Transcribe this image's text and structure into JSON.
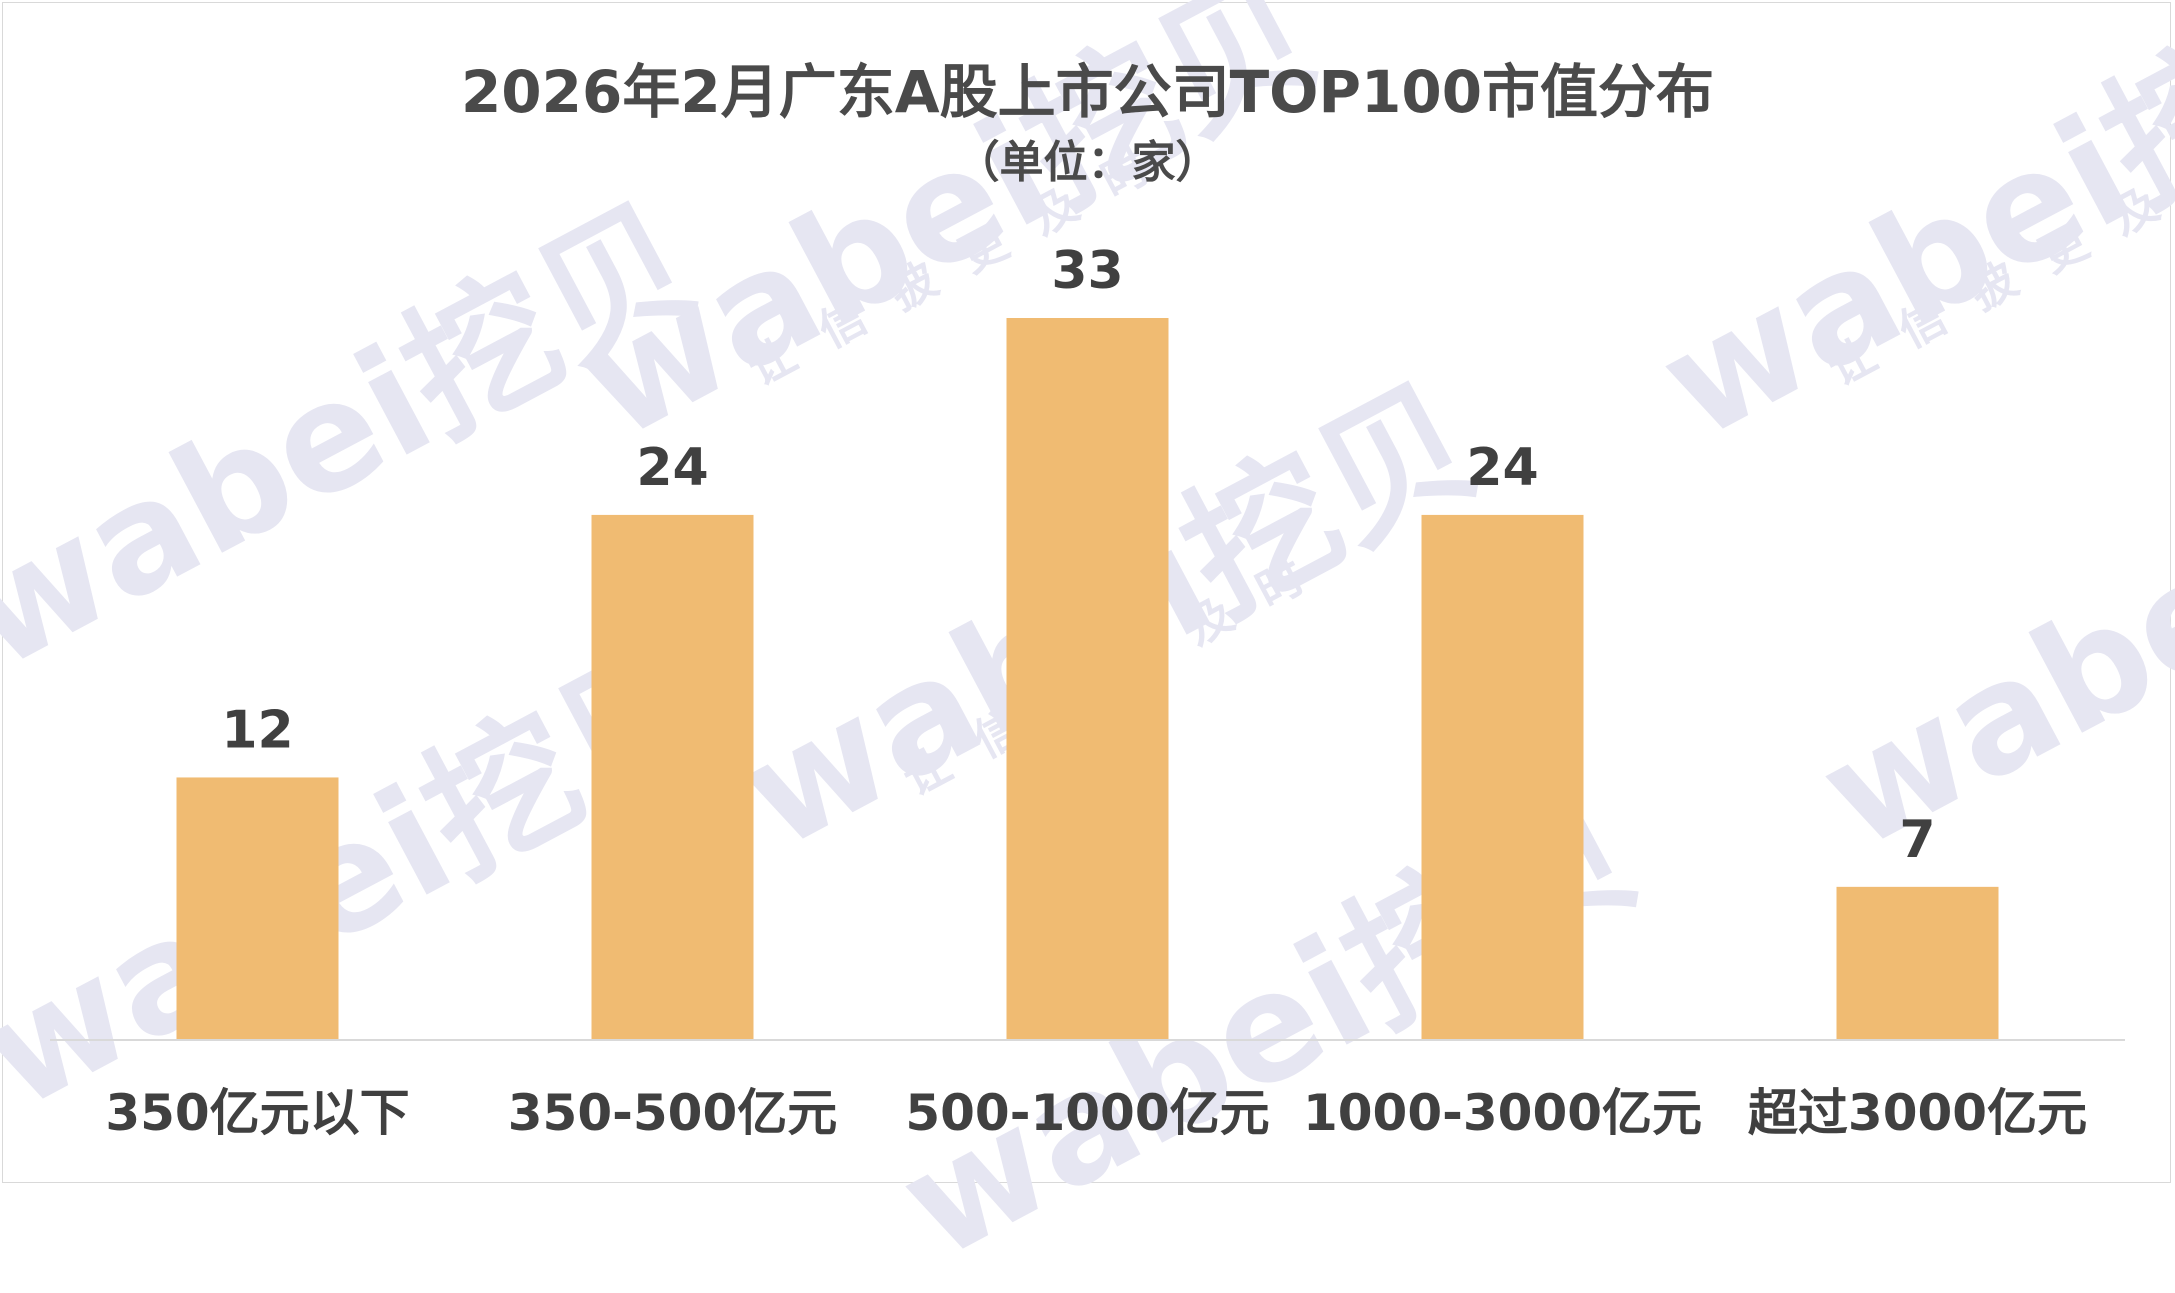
{
  "chart_data": {
    "type": "bar",
    "title": "2026年2月广东A股上市公司TOP100市值分布",
    "subtitle": "（单位：家）",
    "categories": [
      "350亿元以下",
      "350-500亿元",
      "500-1000亿元",
      "1000-3000亿元",
      "超过3000亿元"
    ],
    "values": [
      12,
      24,
      33,
      24,
      7
    ],
    "ylim": [
      0,
      36
    ],
    "grid": false,
    "legend": "none",
    "bar_color": "#f0bb72",
    "label_color": "#404040",
    "axis_color": "#d9d9d9"
  },
  "watermark": {
    "brand": "wabei挖贝",
    "tagline": "让信披更及时",
    "color": "#e6e6f2"
  }
}
